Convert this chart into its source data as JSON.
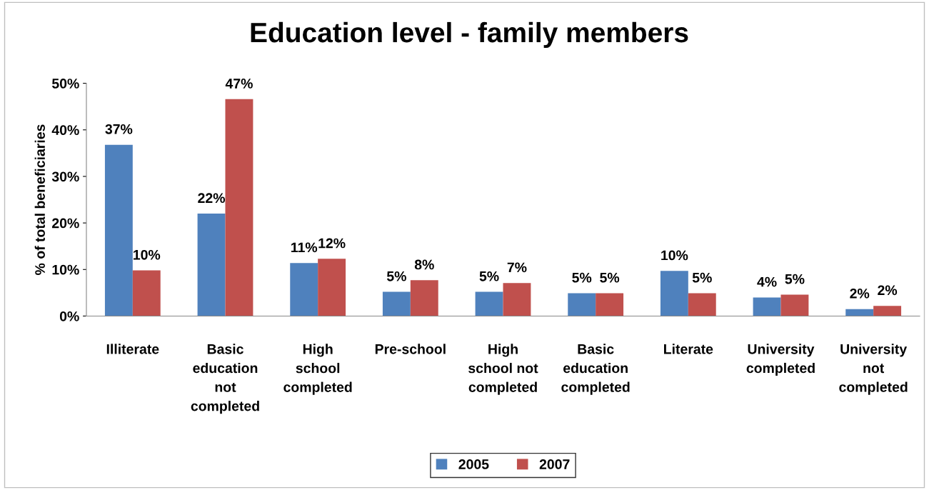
{
  "chart_data": {
    "type": "bar",
    "title": "Education level - family members",
    "ylabel": "% of total beneficiaries",
    "categories": [
      "Illiterate",
      "Basic education not completed",
      "High school completed",
      "Pre-school",
      "High school not completed",
      "Basic education completed",
      "Literate",
      "University completed",
      "University not completed"
    ],
    "series": [
      {
        "name": "2005",
        "color": "#4f81bd",
        "values": [
          36.8,
          22.0,
          11.4,
          5.2,
          5.2,
          4.9,
          9.7,
          4.0,
          1.5
        ],
        "value_labels": [
          "37%",
          "22%",
          "11%",
          "5%",
          "5%",
          "5%",
          "10%",
          "4%",
          "2%"
        ]
      },
      {
        "name": "2007",
        "color": "#c0504d",
        "values": [
          9.8,
          46.6,
          12.3,
          7.7,
          7.1,
          4.9,
          4.9,
          4.6,
          2.2
        ],
        "value_labels": [
          "10%",
          "47%",
          "12%",
          "8%",
          "7%",
          "5%",
          "5%",
          "5%",
          "2%"
        ]
      }
    ],
    "ylim": [
      0,
      50
    ],
    "yticks": [
      {
        "value": 0,
        "label": "0%"
      },
      {
        "value": 10,
        "label": "10%"
      },
      {
        "value": 20,
        "label": "20%"
      },
      {
        "value": 30,
        "label": "30%"
      },
      {
        "value": 40,
        "label": "40%"
      },
      {
        "value": 50,
        "label": "50%"
      }
    ],
    "grid": false,
    "legend": "bottom"
  }
}
